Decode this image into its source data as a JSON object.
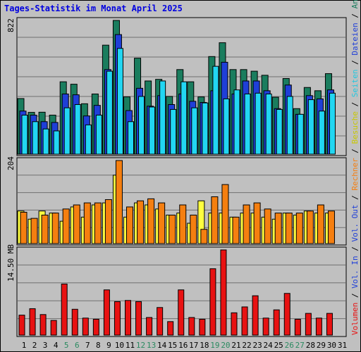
{
  "title": "Tages-Statistik im Monat April 2025",
  "colors": {
    "background": "#c0c0c0",
    "title": "#0000e0",
    "anfragen": "#1a7d5e",
    "dateien": "#1f3fd8",
    "seiten": "#22d6f2",
    "besuche": "#ffff40",
    "rechner": "#f57f10",
    "volumen": "#e81212",
    "weekend_day": "#2a8a60"
  },
  "right_legend": {
    "volumen": "Volumen",
    "vol_in": "Vol. In",
    "vol_out": "Vol. Out",
    "rechner": "Rechner",
    "besuche": "Besuche",
    "seiten": "Seiten",
    "dateien": "Dateien",
    "anfragen": "Anfragen",
    "sep": " / "
  },
  "chart_data": [
    {
      "type": "bar",
      "name": "hits-files-pages",
      "categories": [
        "1",
        "2",
        "3",
        "4",
        "5",
        "6",
        "7",
        "8",
        "9",
        "10",
        "11",
        "12",
        "13",
        "14",
        "15",
        "16",
        "17",
        "18",
        "19",
        "20",
        "21",
        "22",
        "23",
        "24",
        "25",
        "26",
        "27",
        "28",
        "29",
        "30",
        "31"
      ],
      "weekend_days": [
        "5",
        "6",
        "12",
        "13",
        "19",
        "20",
        "26",
        "27"
      ],
      "y_max_label": "822",
      "ylim": [
        0,
        822
      ],
      "series": [
        {
          "name": "Anfragen",
          "values": [
            342,
            257,
            258,
            240,
            445,
            430,
            310,
            370,
            670,
            822,
            352,
            590,
            450,
            460,
            355,
            520,
            445,
            352,
            600,
            685,
            520,
            520,
            510,
            485,
            350,
            465,
            280,
            410,
            390,
            495,
            null
          ]
        },
        {
          "name": "Dateien",
          "values": [
            265,
            240,
            200,
            195,
            370,
            365,
            235,
            300,
            520,
            735,
            268,
            405,
            295,
            360,
            305,
            370,
            325,
            318,
            390,
            565,
            370,
            450,
            450,
            390,
            280,
            425,
            245,
            360,
            340,
            395,
            null
          ]
        },
        {
          "name": "Seiten",
          "values": [
            240,
            200,
            155,
            143,
            285,
            305,
            180,
            240,
            510,
            650,
            200,
            355,
            290,
            450,
            275,
            445,
            285,
            315,
            540,
            340,
            395,
            370,
            375,
            370,
            275,
            355,
            245,
            335,
            265,
            375,
            null
          ]
        }
      ]
    },
    {
      "type": "bar",
      "name": "visits-sites",
      "categories": [
        "1",
        "2",
        "3",
        "4",
        "5",
        "6",
        "7",
        "8",
        "9",
        "10",
        "11",
        "12",
        "13",
        "14",
        "15",
        "16",
        "17",
        "18",
        "19",
        "20",
        "21",
        "22",
        "23",
        "24",
        "25",
        "26",
        "27",
        "28",
        "29",
        "30",
        "31"
      ],
      "y_max_label": "204",
      "ylim": [
        0,
        204
      ],
      "series": [
        {
          "name": "Besuche",
          "values": [
            80,
            60,
            80,
            75,
            55,
            90,
            65,
            95,
            100,
            168,
            65,
            100,
            95,
            85,
            70,
            75,
            50,
            105,
            75,
            75,
            65,
            75,
            75,
            65,
            60,
            75,
            70,
            80,
            75,
            75,
            null
          ]
        },
        {
          "name": "Rechner",
          "values": [
            77,
            62,
            70,
            75,
            85,
            95,
            100,
            100,
            108,
            204,
            90,
            105,
            110,
            100,
            70,
            95,
            70,
            35,
            115,
            145,
            65,
            95,
            100,
            85,
            75,
            75,
            75,
            80,
            95,
            80,
            null
          ]
        }
      ]
    },
    {
      "type": "bar",
      "name": "volume",
      "categories": [
        "1",
        "2",
        "3",
        "4",
        "5",
        "6",
        "7",
        "8",
        "9",
        "10",
        "11",
        "12",
        "13",
        "14",
        "15",
        "16",
        "17",
        "18",
        "19",
        "20",
        "21",
        "22",
        "23",
        "24",
        "25",
        "26",
        "27",
        "28",
        "29",
        "30",
        "31"
      ],
      "y_max_label": "14.50 MB",
      "ylim": [
        0,
        14.5
      ],
      "series": [
        {
          "name": "Volumen",
          "values": [
            3.4,
            4.5,
            3.5,
            2.5,
            8.7,
            4.4,
            2.9,
            2.7,
            7.7,
            5.7,
            5.9,
            5.7,
            3.0,
            4.7,
            2.3,
            7.7,
            3.0,
            2.7,
            11.3,
            14.5,
            3.8,
            4.8,
            6.7,
            2.9,
            4.3,
            7.1,
            2.7,
            3.7,
            2.9,
            3.7,
            null
          ]
        }
      ]
    }
  ]
}
